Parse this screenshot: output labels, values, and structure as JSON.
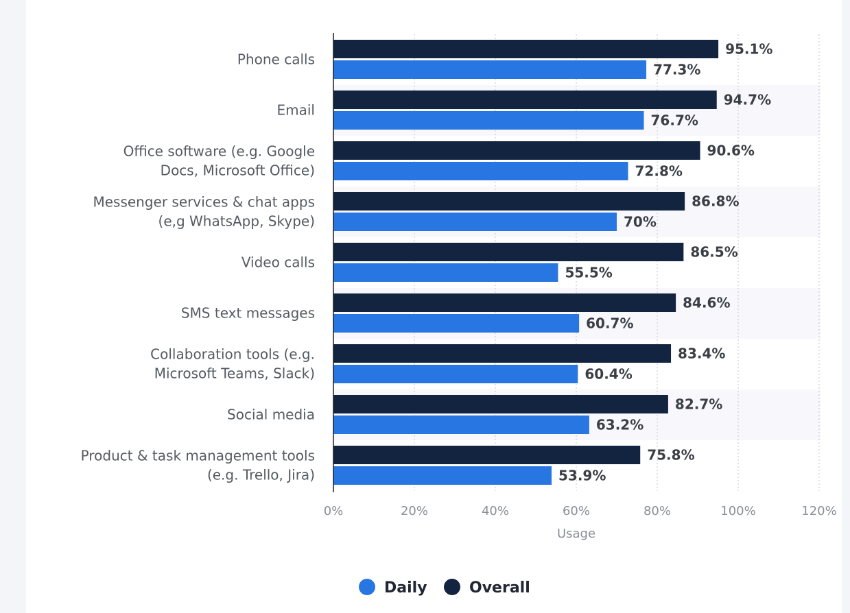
{
  "colors": {
    "daily": "#2876e2",
    "overall": "#12243f",
    "band": "#f8f7fc",
    "grid": "#c4c6cc",
    "axis": "#1b1e24"
  },
  "chart_data": {
    "type": "bar",
    "orientation": "horizontal",
    "categories": [
      [
        "Phone calls"
      ],
      [
        "Email"
      ],
      [
        "Office software (e.g. Google",
        "Docs, Microsoft Office)"
      ],
      [
        "Messenger services & chat apps",
        "(e,g WhatsApp, Skype)"
      ],
      [
        "Video calls"
      ],
      [
        "SMS text messages"
      ],
      [
        "Collaboration tools (e.g.",
        "Microsoft Teams, Slack)"
      ],
      [
        "Social media"
      ],
      [
        "Product & task management tools",
        "(e.g. Trello, Jira)"
      ]
    ],
    "series": [
      {
        "name": "Overall",
        "values": [
          95.1,
          94.7,
          90.6,
          86.8,
          86.5,
          84.6,
          83.4,
          82.7,
          75.8
        ],
        "labels": [
          "95.1%",
          "94.7%",
          "90.6%",
          "86.8%",
          "86.5%",
          "84.6%",
          "83.4%",
          "82.7%",
          "75.8%"
        ]
      },
      {
        "name": "Daily",
        "values": [
          77.3,
          76.7,
          72.8,
          70,
          55.5,
          60.7,
          60.4,
          63.2,
          53.9
        ],
        "labels": [
          "77.3%",
          "76.7%",
          "72.8%",
          "70%",
          "55.5%",
          "60.7%",
          "60.4%",
          "63.2%",
          "53.9%"
        ]
      }
    ],
    "xlabel": "Usage",
    "xlim": [
      0,
      120
    ],
    "xticks": [
      0,
      20,
      40,
      60,
      80,
      100,
      120
    ],
    "xtick_labels": [
      "0%",
      "20%",
      "40%",
      "60%",
      "80%",
      "100%",
      "120%"
    ],
    "grid": true,
    "legend": {
      "position": "bottom",
      "items": [
        {
          "name": "Daily",
          "color_key": "daily"
        },
        {
          "name": "Overall",
          "color_key": "overall"
        }
      ]
    }
  }
}
